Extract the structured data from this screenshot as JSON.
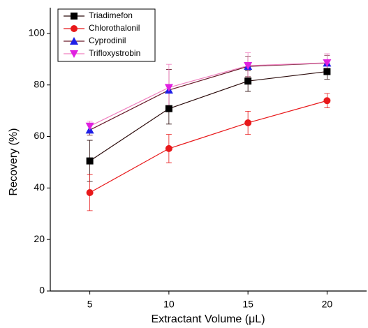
{
  "chart_data": {
    "type": "line",
    "x_label": "Extractant Volume (μL)",
    "y_label": "Recovery (%)",
    "x": [
      5,
      10,
      15,
      20
    ],
    "series": [
      {
        "name": "Triadimefon",
        "color": "#000000",
        "line_color": "#2a0a0a",
        "marker": "square",
        "values": [
          50.5,
          70.8,
          81.5,
          85.2
        ],
        "errors": [
          8,
          6,
          4,
          3
        ]
      },
      {
        "name": "Chlorothalonil",
        "color": "#e8181a",
        "line_color": "#e8181a",
        "marker": "circle",
        "values": [
          38.2,
          55.3,
          65.3,
          73.9
        ],
        "errors": [
          7,
          5.5,
          4.5,
          2.8
        ]
      },
      {
        "name": "Cyprodinil",
        "color": "#1f1fe6",
        "line_color": "#6a1a2a",
        "marker": "triangle",
        "values": [
          62.5,
          78.0,
          87.2,
          88.5
        ],
        "errors": [
          2,
          8,
          4,
          3
        ]
      },
      {
        "name": "Trifloxystrobin",
        "color": "#e020e0",
        "line_color": "#f080c0",
        "marker": "triangle-down",
        "values": [
          64.0,
          79.0,
          87.5,
          88.6
        ],
        "errors": [
          2,
          9,
          5,
          3.5
        ]
      }
    ],
    "xlim": [
      2.5,
      22.5
    ],
    "ylim": [
      0,
      110
    ],
    "xticks": [
      5,
      10,
      15,
      20
    ],
    "yticks": [
      0,
      20,
      40,
      60,
      80,
      100
    ],
    "grid": false,
    "legend": "upper-left"
  }
}
